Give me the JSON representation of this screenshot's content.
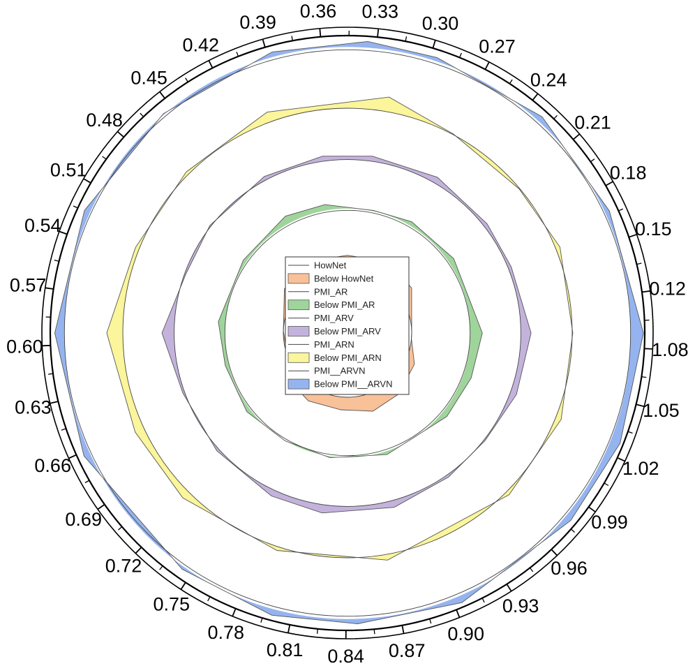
{
  "chart_data": {
    "type": "polar-area",
    "angular_axis": {
      "tick_labels": [
        "0.12",
        "0.15",
        "0.18",
        "0.21",
        "0.24",
        "0.27",
        "0.30",
        "0.33",
        "0.36",
        "0.39",
        "0.42",
        "0.45",
        "0.48",
        "0.51",
        "0.54",
        "0.57",
        "0.60",
        "0.63",
        "0.66",
        "0.69",
        "0.72",
        "0.75",
        "0.78",
        "0.81",
        "0.84",
        "0.87",
        "0.90",
        "0.93",
        "0.96",
        "0.99",
        "1.02",
        "1.05",
        "1.08"
      ],
      "tick_angles_deg": [
        7.9,
        18.8,
        29.7,
        40.6,
        51.5,
        62.4,
        73.3,
        84.2,
        95.2,
        106.1,
        117.0,
        127.9,
        138.8,
        149.7,
        160.6,
        171.5,
        182.4,
        193.3,
        204.2,
        215.2,
        226.1,
        237.0,
        247.9,
        258.8,
        269.7,
        280.6,
        291.5,
        302.4,
        313.3,
        324.2,
        335.2,
        346.1,
        357.0
      ]
    },
    "radial_axis": {
      "visible": false
    },
    "grid": false,
    "legend": {
      "placement": "center"
    },
    "series": [
      {
        "name": "HowNet",
        "fill_label": "Below HowNet",
        "fill_color": "#f9c198",
        "base_radius": 1.0,
        "vertices": [
          [
            0,
            1.0
          ],
          [
            35,
            1.22
          ],
          [
            60,
            1.28
          ],
          [
            90,
            1.21
          ],
          [
            117,
            1.26
          ],
          [
            145,
            1.2
          ],
          [
            178,
            1.0
          ],
          [
            205,
            1.02
          ],
          [
            215,
            1.18
          ],
          [
            240,
            1.22
          ],
          [
            265,
            1.2
          ],
          [
            288,
            1.28
          ],
          [
            310,
            1.24
          ],
          [
            335,
            1.15
          ],
          [
            355,
            1.0
          ]
        ]
      },
      {
        "name": "PMI_AR",
        "fill_label": "Below PMI_AR",
        "fill_color": "#9fd49b",
        "base_radius": 1.91,
        "vertices": [
          [
            0,
            2.1
          ],
          [
            35,
            2.02
          ],
          [
            60,
            2.0
          ],
          [
            78,
            1.95
          ],
          [
            100,
            2.03
          ],
          [
            118,
            2.06
          ],
          [
            145,
            1.98
          ],
          [
            175,
            2.02
          ],
          [
            195,
            1.97
          ],
          [
            218,
            1.99
          ],
          [
            240,
            1.94
          ],
          [
            262,
            1.96
          ],
          [
            288,
            1.99
          ],
          [
            320,
            2.02
          ],
          [
            340,
            2.05
          ]
        ]
      },
      {
        "name": "PMI_ARV",
        "fill_label": "Below PMI_ARV",
        "fill_color": "#c3b3dc",
        "base_radius": 2.7,
        "vertices": [
          [
            0,
            2.86
          ],
          [
            22,
            2.75
          ],
          [
            38,
            2.76
          ],
          [
            60,
            2.8
          ],
          [
            82,
            2.78
          ],
          [
            98,
            2.78
          ],
          [
            118,
            2.76
          ],
          [
            142,
            2.72
          ],
          [
            160,
            2.68
          ],
          [
            180,
            2.89
          ],
          [
            200,
            2.73
          ],
          [
            222,
            2.74
          ],
          [
            245,
            2.8
          ],
          [
            262,
            2.83
          ],
          [
            285,
            2.81
          ],
          [
            305,
            2.74
          ],
          [
            322,
            2.72
          ],
          [
            340,
            2.8
          ]
        ]
      },
      {
        "name": "PMI_ARN",
        "fill_label": "Below PMI_ARN",
        "fill_color": "#fbf59b",
        "base_radius": 3.5,
        "vertices": [
          [
            0,
            3.51
          ],
          [
            22,
            3.57
          ],
          [
            40,
            3.49
          ],
          [
            62,
            3.51
          ],
          [
            80,
            3.73
          ],
          [
            110,
            3.66
          ],
          [
            135,
            3.55
          ],
          [
            158,
            3.56
          ],
          [
            180,
            3.75
          ],
          [
            205,
            3.65
          ],
          [
            225,
            3.63
          ],
          [
            252,
            3.56
          ],
          [
            280,
            3.59
          ],
          [
            315,
            3.56
          ],
          [
            338,
            3.59
          ]
        ]
      },
      {
        "name": "PMI__ARVN",
        "fill_label": "Below PMI__ARVN",
        "fill_color": "#95b4ef",
        "base_radius": 4.41,
        "vertices": [
          [
            0,
            4.61
          ],
          [
            25,
            4.5
          ],
          [
            48,
            4.53
          ],
          [
            72,
            4.51
          ],
          [
            86,
            4.55
          ],
          [
            105,
            4.53
          ],
          [
            130,
            4.46
          ],
          [
            155,
            4.52
          ],
          [
            180,
            4.56
          ],
          [
            205,
            4.53
          ],
          [
            235,
            4.49
          ],
          [
            255,
            4.55
          ],
          [
            272,
            4.53
          ],
          [
            293,
            4.56
          ],
          [
            320,
            4.54
          ],
          [
            338,
            4.58
          ]
        ]
      }
    ]
  }
}
